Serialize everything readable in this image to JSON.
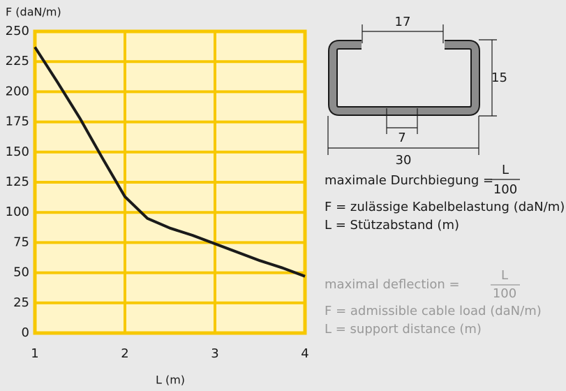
{
  "chart_data": {
    "type": "line",
    "y_label": "F (daN/m)",
    "x_label": "L (m)",
    "x": [
      1.0,
      1.25,
      1.5,
      1.75,
      2.0,
      2.25,
      2.5,
      2.75,
      3.0,
      3.25,
      3.5,
      3.75,
      4.0
    ],
    "values": [
      237,
      208,
      178,
      145,
      113,
      95,
      87,
      81,
      74,
      67,
      60,
      54,
      47
    ],
    "color": "#1a1a1a",
    "xlim": [
      1,
      4
    ],
    "xticks": [
      1,
      2,
      3,
      4
    ],
    "ylim": [
      0,
      250
    ],
    "yticks": [
      0,
      25,
      50,
      75,
      100,
      125,
      150,
      175,
      200,
      225,
      250
    ],
    "grid": true
  },
  "profile": {
    "dim_top": "17",
    "dim_right": "15",
    "dim_slot": "7",
    "dim_width": "30"
  },
  "german": {
    "deflection": "maximale Durchbiegung =",
    "numerator": "L",
    "denominator": "100",
    "f_def": "F = zulässige Kabelbelastung (daN/m)",
    "l_def": "L = Stützabstand (m)"
  },
  "english": {
    "deflection": "maximal deflection =",
    "numerator": "L",
    "denominator": "100",
    "f_def": "F = admissible cable load (daN/m)",
    "l_def": "L = support distance (m)"
  }
}
